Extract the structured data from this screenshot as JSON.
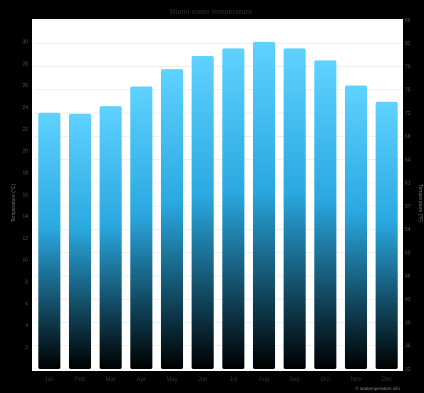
{
  "chart_data": {
    "type": "bar",
    "title": "Miami water temperature",
    "categories": [
      "Jan",
      "Feb",
      "Mar",
      "Apr",
      "May",
      "Jun",
      "Jul",
      "Aug",
      "Sep",
      "Oct",
      "Nov",
      "Dec"
    ],
    "series": [
      {
        "values": [
          23.5,
          23.4,
          24.1,
          25.9,
          27.5,
          28.7,
          29.4,
          30.0,
          29.4,
          28.3,
          26.0,
          24.5
        ]
      }
    ],
    "ylim": [
      0,
      32
    ],
    "y_left_ticks": [
      "2",
      "4",
      "6",
      "8",
      "10",
      "12",
      "14",
      "16",
      "18",
      "20",
      "22",
      "24",
      "26",
      "28",
      "30"
    ],
    "y_right_ticks": [
      "32",
      "36",
      "39",
      "43",
      "46",
      "50",
      "54",
      "57",
      "61",
      "64",
      "68",
      "72",
      "75",
      "79",
      "82",
      "86"
    ],
    "ylabel": "Temperature (°C)",
    "ylabel_right": "Temperature (°F)",
    "credit": "© seatemperature.info",
    "bar_gradient": [
      "#000000",
      "#2aa8e0",
      "#5fd2ff"
    ],
    "grid": true,
    "legend": "none"
  }
}
